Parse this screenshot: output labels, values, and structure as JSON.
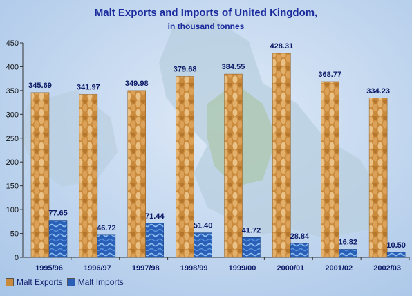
{
  "title": "Malt Exports and Imports of United Kingdom,",
  "subtitle": "in thousand tonnes",
  "chart_data": {
    "type": "bar",
    "categories": [
      "1995/96",
      "1996/97",
      "1997/98",
      "1998/99",
      "1999/00",
      "2000/01",
      "2001/02",
      "2002/03"
    ],
    "series": [
      {
        "name": "Malt Exports",
        "values": [
          345.69,
          341.97,
          349.98,
          379.68,
          384.55,
          428.31,
          368.77,
          334.23
        ],
        "labels": [
          "345.69",
          "341.97",
          "349.98",
          "379.68",
          "384.55",
          "428.31",
          "368.77",
          "334.23"
        ]
      },
      {
        "name": "Malt Imports",
        "values": [
          77.65,
          46.72,
          71.44,
          51.4,
          41.72,
          28.84,
          16.82,
          10.5
        ],
        "labels": [
          "77.65",
          "46.72",
          "71.44",
          "51.40",
          "41.72",
          "28.84",
          "16.82",
          "10.50"
        ]
      }
    ],
    "yticks": [
      "0",
      "50",
      "100",
      "150",
      "200",
      "250",
      "300",
      "350",
      "400",
      "450"
    ],
    "ylim": [
      0,
      450
    ],
    "legend_position": "bottom-left",
    "colors": {
      "exports": "#c98a3c",
      "imports": "#2a5fb8",
      "text": "#0b1a66"
    }
  }
}
